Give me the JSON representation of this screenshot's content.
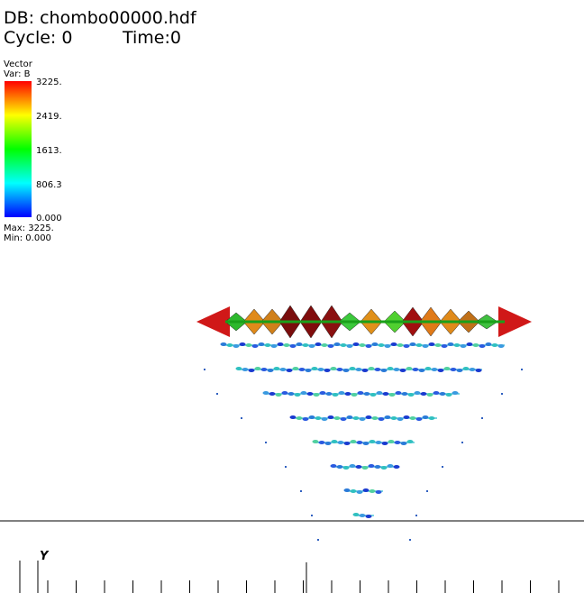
{
  "header": {
    "db": "DB: chombo00000.hdf",
    "cycle": "Cycle: 0",
    "time": "Time:0"
  },
  "legend": {
    "title": "Vector",
    "variable": "Var: B",
    "tick_labels": [
      "3225.",
      "2419.",
      "1613.",
      "806.3",
      "0.000"
    ],
    "max": "Max: 3225.",
    "min": "Min: 0.000"
  },
  "axis": {
    "label": "Y"
  }
}
